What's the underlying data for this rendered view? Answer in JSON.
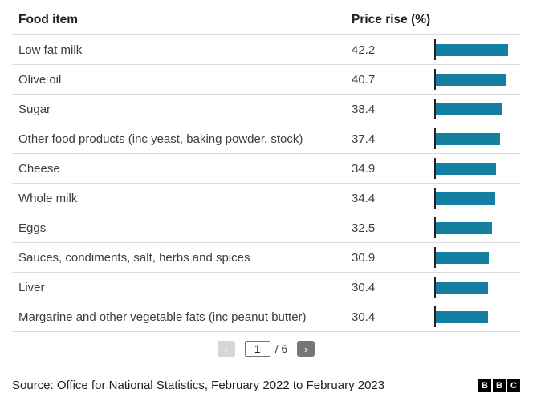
{
  "table": {
    "headers": {
      "food_item": "Food item",
      "price_rise": "Price rise (%)"
    },
    "rows": [
      {
        "label": "Low fat milk",
        "value": "42.2"
      },
      {
        "label": "Olive oil",
        "value": "40.7"
      },
      {
        "label": "Sugar",
        "value": "38.4"
      },
      {
        "label": "Other food products (inc yeast, baking powder, stock)",
        "value": "37.4"
      },
      {
        "label": "Cheese",
        "value": "34.9"
      },
      {
        "label": "Whole milk",
        "value": "34.4"
      },
      {
        "label": "Eggs",
        "value": "32.5"
      },
      {
        "label": "Sauces, condiments, salt, herbs and spices",
        "value": "30.9"
      },
      {
        "label": "Liver",
        "value": "30.4"
      },
      {
        "label": "Margarine and other vegetable fats (inc peanut butter)",
        "value": "30.4"
      }
    ]
  },
  "pagination": {
    "prev_icon": "‹",
    "next_icon": "›",
    "current_page": "1",
    "total_label": "/ 6"
  },
  "footer": {
    "source": "Source: Office for National Statistics, February 2022 to February 2023",
    "logo_blocks": [
      "B",
      "B",
      "C"
    ]
  },
  "colors": {
    "bar": "#1380A1",
    "axis": "#222222"
  },
  "chart_data": {
    "type": "bar",
    "orientation": "horizontal",
    "title": "",
    "xlabel": "Price rise (%)",
    "ylabel": "Food item",
    "categories": [
      "Low fat milk",
      "Olive oil",
      "Sugar",
      "Other food products (inc yeast, baking powder, stock)",
      "Cheese",
      "Whole milk",
      "Eggs",
      "Sauces, condiments, salt, herbs and spices",
      "Liver",
      "Margarine and other vegetable fats (inc peanut butter)"
    ],
    "values": [
      42.2,
      40.7,
      38.4,
      37.4,
      34.9,
      34.4,
      32.5,
      30.9,
      30.4,
      30.4
    ],
    "xlim": [
      0,
      50
    ],
    "grid": false,
    "legend": false,
    "pagination": {
      "current": 1,
      "total": 6
    }
  }
}
